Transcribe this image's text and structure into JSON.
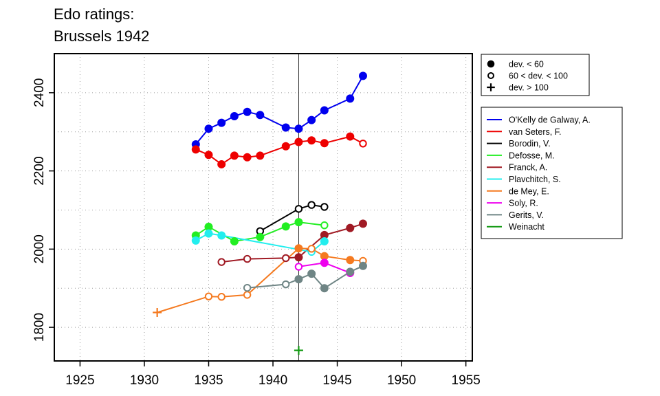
{
  "chart_data": {
    "type": "line",
    "title_lines": [
      "Edo ratings:",
      "Brussels 1942"
    ],
    "xlabel": "",
    "ylabel": "",
    "xlim": [
      1923,
      1955.5
    ],
    "ylim": [
      1714,
      2500
    ],
    "xticks": [
      1925,
      1930,
      1935,
      1940,
      1945,
      1950,
      1955
    ],
    "yticks": [
      1800,
      2000,
      2200,
      2400
    ],
    "grid": true,
    "vline_x": 1942,
    "marker_legend": [
      {
        "symbol": "filled",
        "label": "dev. < 60"
      },
      {
        "symbol": "open",
        "label": "60 < dev. < 100"
      },
      {
        "symbol": "plus",
        "label": "dev. > 100"
      }
    ],
    "legend_placement": "right",
    "series": [
      {
        "name": "O'Kelly de Galway, A.",
        "color": "#0000ee",
        "points": [
          [
            1934,
            2268,
            "filled"
          ],
          [
            1935,
            2308,
            "filled"
          ],
          [
            1936,
            2323,
            "filled"
          ],
          [
            1937,
            2340,
            "filled"
          ],
          [
            1938,
            2351,
            "filled"
          ],
          [
            1939,
            2343,
            "filled"
          ],
          [
            1941,
            2311,
            "filled"
          ],
          [
            1942,
            2308,
            "filled"
          ],
          [
            1943,
            2330,
            "filled"
          ],
          [
            1944,
            2355,
            "filled"
          ],
          [
            1946,
            2385,
            "filled"
          ],
          [
            1947,
            2443,
            "filled"
          ]
        ]
      },
      {
        "name": "van Seters, F.",
        "color": "#ee0000",
        "points": [
          [
            1934,
            2255,
            "filled"
          ],
          [
            1935,
            2241,
            "filled"
          ],
          [
            1936,
            2217,
            "filled"
          ],
          [
            1937,
            2239,
            "filled"
          ],
          [
            1938,
            2235,
            "filled"
          ],
          [
            1939,
            2239,
            "filled"
          ],
          [
            1941,
            2263,
            "filled"
          ],
          [
            1942,
            2274,
            "filled"
          ],
          [
            1943,
            2278,
            "filled"
          ],
          [
            1944,
            2271,
            "filled"
          ],
          [
            1946,
            2288,
            "filled"
          ],
          [
            1947,
            2270,
            "open"
          ]
        ]
      },
      {
        "name": "Borodin, V.",
        "color": "#000000",
        "points": [
          [
            1939,
            2046,
            "open"
          ],
          [
            1942,
            2103,
            "open"
          ],
          [
            1943,
            2113,
            "open"
          ],
          [
            1944,
            2108,
            "open"
          ]
        ]
      },
      {
        "name": "Defosse, M.",
        "color": "#22ee22",
        "points": [
          [
            1934,
            2035,
            "filled"
          ],
          [
            1935,
            2057,
            "filled"
          ],
          [
            1937,
            2020,
            "filled"
          ],
          [
            1939,
            2031,
            "filled"
          ],
          [
            1941,
            2058,
            "filled"
          ],
          [
            1942,
            2069,
            "filled"
          ],
          [
            1944,
            2061,
            "open"
          ]
        ]
      },
      {
        "name": "Franck, A.",
        "color": "#a01a24",
        "points": [
          [
            1936,
            1967,
            "open"
          ],
          [
            1938,
            1975,
            "open"
          ],
          [
            1941,
            1977,
            "open"
          ],
          [
            1942,
            1979,
            "filled"
          ],
          [
            1944,
            2036,
            "filled"
          ],
          [
            1946,
            2054,
            "filled"
          ],
          [
            1947,
            2065,
            "filled"
          ]
        ]
      },
      {
        "name": "Plavchitch, S.",
        "color": "#22eeee",
        "points": [
          [
            1934,
            2022,
            "filled"
          ],
          [
            1935,
            2040,
            "filled"
          ],
          [
            1936,
            2035,
            "filled"
          ],
          [
            1943,
            1993,
            "open"
          ],
          [
            1944,
            2020,
            "filled"
          ]
        ]
      },
      {
        "name": "de Mey, E.",
        "color": "#f57a20",
        "points": [
          [
            1931,
            1838,
            "plus"
          ],
          [
            1935,
            1879,
            "open"
          ],
          [
            1936,
            1878,
            "open"
          ],
          [
            1938,
            1883,
            "open"
          ],
          [
            1942,
            2002,
            "filled"
          ],
          [
            1943,
            2001,
            "open"
          ],
          [
            1944,
            1982,
            "filled"
          ],
          [
            1946,
            1972,
            "filled"
          ],
          [
            1947,
            1970,
            "open"
          ]
        ]
      },
      {
        "name": "Soly, R.",
        "color": "#ee00ee",
        "points": [
          [
            1942,
            1955,
            "open"
          ],
          [
            1944,
            1965,
            "filled"
          ],
          [
            1946,
            1939,
            "filled"
          ]
        ]
      },
      {
        "name": "Gerits, V.",
        "color": "#6f8585",
        "points": [
          [
            1938,
            1901,
            "open"
          ],
          [
            1941,
            1910,
            "open"
          ],
          [
            1942,
            1923,
            "filled"
          ],
          [
            1943,
            1937,
            "filled"
          ],
          [
            1944,
            1900,
            "filled"
          ],
          [
            1946,
            1942,
            "filled"
          ],
          [
            1947,
            1957,
            "filled"
          ]
        ]
      },
      {
        "name": "Weinacht",
        "color": "#119911",
        "points": [
          [
            1942,
            1741,
            "plus"
          ]
        ]
      }
    ]
  }
}
